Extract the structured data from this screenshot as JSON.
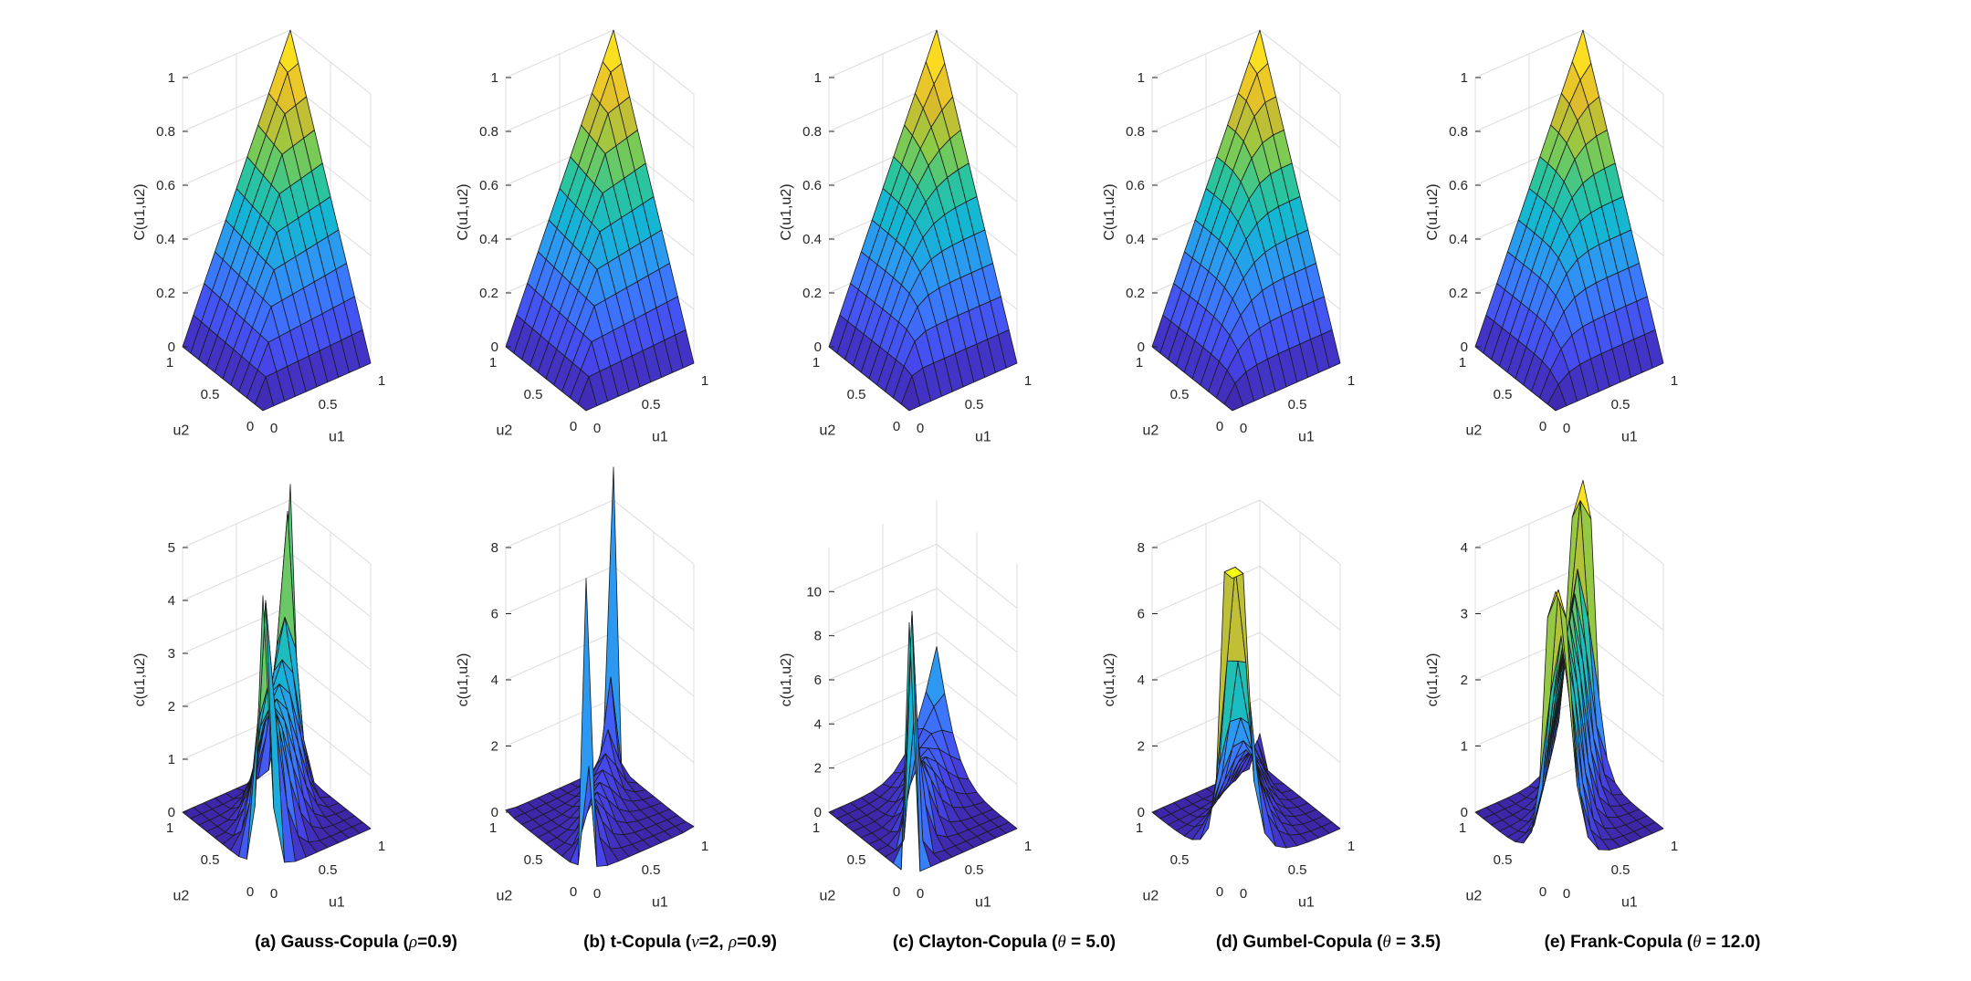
{
  "chart_data": [
    {
      "type": "surface",
      "panel": "top",
      "index": 0,
      "copula": "gauss",
      "title": "",
      "zlabel": "C(u1,u2)",
      "xlabel": "u1",
      "ylabel": "u2",
      "zlim": [
        0,
        1
      ],
      "zticks": [
        "0",
        "0.2",
        "0.4",
        "0.6",
        "0.8",
        "1"
      ],
      "xticks": [
        "0",
        "0.5",
        "1"
      ],
      "yticks": [
        "0",
        "0.5",
        "1"
      ],
      "params": {
        "rho": 0.9
      }
    },
    {
      "type": "surface",
      "panel": "top",
      "index": 1,
      "copula": "t",
      "title": "",
      "zlabel": "C(u1,u2)",
      "xlabel": "u1",
      "ylabel": "u2",
      "zlim": [
        0,
        1
      ],
      "zticks": [
        "0",
        "0.2",
        "0.4",
        "0.6",
        "0.8",
        "1"
      ],
      "xticks": [
        "0",
        "0.5",
        "1"
      ],
      "yticks": [
        "0",
        "0.5",
        "1"
      ],
      "params": {
        "nu": 2,
        "rho": 0.9
      }
    },
    {
      "type": "surface",
      "panel": "top",
      "index": 2,
      "copula": "clayton",
      "title": "",
      "zlabel": "C(u1,u2)",
      "xlabel": "u1",
      "ylabel": "u2",
      "zlim": [
        0,
        1
      ],
      "zticks": [
        "0",
        "0.2",
        "0.4",
        "0.6",
        "0.8",
        "1"
      ],
      "xticks": [
        "0",
        "0.5",
        "1"
      ],
      "yticks": [
        "0",
        "0.5",
        "1"
      ],
      "params": {
        "theta": 5.0
      }
    },
    {
      "type": "surface",
      "panel": "top",
      "index": 3,
      "copula": "gumbel",
      "title": "",
      "zlabel": "C(u1,u2)",
      "xlabel": "u1",
      "ylabel": "u2",
      "zlim": [
        0,
        1
      ],
      "zticks": [
        "0",
        "0.2",
        "0.4",
        "0.6",
        "0.8",
        "1"
      ],
      "xticks": [
        "0",
        "0.5",
        "1"
      ],
      "yticks": [
        "0",
        "0.5",
        "1"
      ],
      "params": {
        "theta": 3.5
      }
    },
    {
      "type": "surface",
      "panel": "top",
      "index": 4,
      "copula": "frank",
      "title": "",
      "zlabel": "C(u1,u2)",
      "xlabel": "u1",
      "ylabel": "u2",
      "zlim": [
        0,
        1
      ],
      "zticks": [
        "0",
        "0.2",
        "0.4",
        "0.6",
        "0.8",
        "1"
      ],
      "xticks": [
        "0",
        "0.5",
        "1"
      ],
      "yticks": [
        "0",
        "0.5",
        "1"
      ],
      "params": {
        "theta": 12.0
      }
    },
    {
      "type": "surface",
      "panel": "bottom",
      "index": 0,
      "copula": "gauss",
      "title": "",
      "zlabel": "c(u1,u2)",
      "xlabel": "u1",
      "ylabel": "u2",
      "zlim": [
        0,
        5
      ],
      "zticks": [
        "0",
        "1",
        "2",
        "3",
        "4",
        "5"
      ],
      "xticks": [
        "0",
        "0.5",
        "1"
      ],
      "yticks": [
        "0",
        "0.5",
        "1"
      ],
      "peak": 5.3,
      "params": {
        "rho": 0.9
      }
    },
    {
      "type": "surface",
      "panel": "bottom",
      "index": 1,
      "copula": "t",
      "title": "",
      "zlabel": "c(u1,u2)",
      "xlabel": "u1",
      "ylabel": "u2",
      "zlim": [
        0,
        8
      ],
      "zticks": [
        "0",
        "2",
        "4",
        "6",
        "8"
      ],
      "xticks": [
        "0",
        "0.5",
        "1"
      ],
      "yticks": [
        "0",
        "0.5",
        "1"
      ],
      "peak": 9.0,
      "params": {
        "nu": 2,
        "rho": 0.9
      }
    },
    {
      "type": "surface",
      "panel": "bottom",
      "index": 2,
      "copula": "clayton",
      "title": "",
      "zlabel": "c(u1,u2)",
      "xlabel": "u1",
      "ylabel": "u2",
      "zlim": [
        0,
        12
      ],
      "zticks": [
        "0",
        "2",
        "4",
        "6",
        "8",
        "10"
      ],
      "xticks": [
        "0",
        "0.5",
        "1"
      ],
      "yticks": [
        "0",
        "0.5",
        "1"
      ],
      "peak": 11.5,
      "params": {
        "theta": 5.0
      }
    },
    {
      "type": "surface",
      "panel": "bottom",
      "index": 3,
      "copula": "gumbel",
      "title": "",
      "zlabel": "c(u1,u2)",
      "xlabel": "u1",
      "ylabel": "u2",
      "zlim": [
        0,
        8
      ],
      "zticks": [
        "0",
        "2",
        "4",
        "6",
        "8"
      ],
      "xticks": [
        "0",
        "0.5",
        "1"
      ],
      "yticks": [
        "0",
        "0.5",
        "1"
      ],
      "peak": 9.0,
      "params": {
        "theta": 3.5
      }
    },
    {
      "type": "surface",
      "panel": "bottom",
      "index": 4,
      "copula": "frank",
      "title": "",
      "zlabel": "c(u1,u2)",
      "xlabel": "u1",
      "ylabel": "u2",
      "zlim": [
        0,
        4
      ],
      "zticks": [
        "0",
        "1",
        "2",
        "3",
        "4"
      ],
      "xticks": [
        "0",
        "0.5",
        "1"
      ],
      "yticks": [
        "0",
        "0.5",
        "1"
      ],
      "peak": 4.3,
      "params": {
        "theta": 12.0
      }
    }
  ],
  "captions": [
    {
      "pre": "(a) Gauss-Copula (",
      "sym": "ρ",
      "post": "=0.9)"
    },
    {
      "pre": "(b) t-Copula (",
      "sym": "ν",
      "mid": "=2, ",
      "sym2": "ρ",
      "post": "=0.9)"
    },
    {
      "pre": "(c) Clayton-Copula (",
      "sym": "θ",
      "post": " = 5.0)"
    },
    {
      "pre": "(d) Gumbel-Copula (",
      "sym": "θ",
      "post": " = 3.5)"
    },
    {
      "pre": "(e) Frank-Copula (",
      "sym": "θ",
      "post": " = 12.0)"
    }
  ],
  "colormap": [
    "#3e26a8",
    "#4746eb",
    "#3e70ff",
    "#2d97f3",
    "#14b6d4",
    "#2cc59a",
    "#8ecb45",
    "#d8ba2e",
    "#fbd424",
    "#f9fb15"
  ]
}
